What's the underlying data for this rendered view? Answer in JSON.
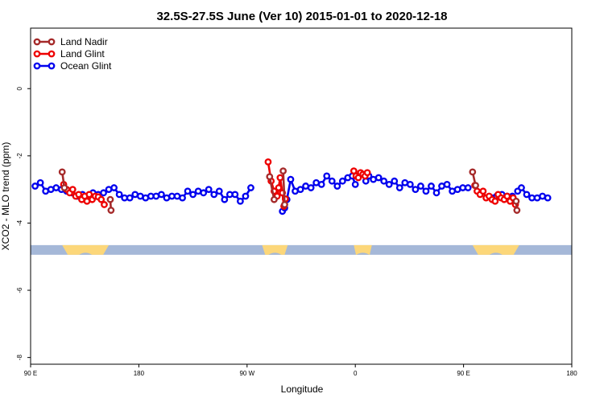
{
  "chart_data": {
    "type": "line",
    "title": "32.5S-27.5S June (Ver 10)   2015-01-01 to 2020-12-18",
    "xlabel": "Longitude",
    "ylabel": "XCO2 - MLO trend (ppm)",
    "xlim": [
      90,
      450
    ],
    "ylim": [
      -8.2,
      1.8
    ],
    "x_ticks": [
      {
        "value": 90,
        "label": "90 E"
      },
      {
        "value": 162,
        "label": "180"
      },
      {
        "value": 234,
        "label": "90 W"
      },
      {
        "value": 306,
        "label": "0"
      },
      {
        "value": 378,
        "label": "90 E"
      },
      {
        "value": 450,
        "label": "180"
      }
    ],
    "y_ticks": [
      {
        "value": 0,
        "label": "0"
      },
      {
        "value": -2,
        "label": "-2"
      },
      {
        "value": -4,
        "label": "-4"
      },
      {
        "value": -6,
        "label": "-6"
      },
      {
        "value": -8,
        "label": "-8"
      }
    ],
    "legend_position": "top-left",
    "land_ocean_strip": {
      "y": -4.8,
      "ocean_color": "#a5b8d8",
      "land_color": "#fcd77a",
      "land_segments": [
        [
          111,
          142
        ],
        [
          244,
          261
        ],
        [
          305,
          317
        ],
        [
          384,
          415
        ]
      ]
    },
    "series": [
      {
        "name": "Land Nadir",
        "color": "#a52a2a",
        "segments": [
          [
            [
              111,
              -2.48
            ],
            [
              112.5,
              -2.95
            ]
          ],
          [
            [
              143,
              -3.3
            ],
            [
              143.5,
              -3.62
            ]
          ],
          [
            [
              249,
              -2.62
            ],
            [
              252,
              -3.3
            ]
          ],
          [
            [
              258,
              -2.45
            ],
            [
              259,
              -3.45
            ]
          ],
          [
            [
              384,
              -2.48
            ],
            [
              386,
              -2.88
            ]
          ],
          [
            [
              413.5,
              -3.62
            ],
            [
              413,
              -3.35
            ]
          ]
        ]
      },
      {
        "name": "Land Glint",
        "color": "#ee0000",
        "segments": [
          [
            [
              112,
              -2.85
            ],
            [
              114,
              -3.0
            ],
            [
              116,
              -3.1
            ],
            [
              118,
              -3.0
            ],
            [
              120,
              -3.2
            ],
            [
              122,
              -3.15
            ],
            [
              124,
              -3.3
            ],
            [
              126,
              -3.2
            ],
            [
              127.5,
              -3.35
            ],
            [
              129,
              -3.15
            ],
            [
              131,
              -3.3
            ],
            [
              133,
              -3.2
            ],
            [
              135,
              -3.22
            ],
            [
              137,
              -3.3
            ],
            [
              139,
              -3.45
            ]
          ],
          [
            [
              248,
              -2.18
            ],
            [
              250,
              -2.75
            ],
            [
              252,
              -3.05
            ],
            [
              254,
              -3.2
            ],
            [
              255,
              -2.95
            ],
            [
              256,
              -2.65
            ],
            [
              257.5,
              -3.1
            ],
            [
              258.5,
              -3.5
            ],
            [
              259.5,
              -3.28
            ]
          ],
          [
            [
              305,
              -2.45
            ],
            [
              306.5,
              -2.6
            ],
            [
              308,
              -2.65
            ],
            [
              309.5,
              -2.5
            ],
            [
              311,
              -2.55
            ],
            [
              312.5,
              -2.6
            ],
            [
              314,
              -2.5
            ]
          ],
          [
            [
              385.5,
              -2.88
            ],
            [
              387,
              -3.05
            ],
            [
              389,
              -3.15
            ],
            [
              391,
              -3.05
            ],
            [
              393,
              -3.25
            ],
            [
              395,
              -3.2
            ],
            [
              397,
              -3.3
            ],
            [
              399,
              -3.35
            ],
            [
              401,
              -3.15
            ],
            [
              403,
              -3.25
            ],
            [
              405,
              -3.3
            ],
            [
              407,
              -3.2
            ],
            [
              409,
              -3.35
            ],
            [
              411,
              -3.25
            ],
            [
              412.5,
              -3.45
            ]
          ]
        ]
      },
      {
        "name": "Ocean Glint",
        "color": "#0000ee",
        "segments": [
          [
            [
              93,
              -2.9
            ],
            [
              96.5,
              -2.8
            ],
            [
              100,
              -3.05
            ],
            [
              103.5,
              -3.0
            ],
            [
              107,
              -2.95
            ],
            [
              110.5,
              -3.0
            ],
            [
              114,
              -3.05
            ],
            [
              117.5,
              -3.1
            ],
            [
              121,
              -3.2
            ],
            [
              124.5,
              -3.15
            ],
            [
              128,
              -3.2
            ],
            [
              131.5,
              -3.1
            ],
            [
              135,
              -3.15
            ],
            [
              138.5,
              -3.1
            ],
            [
              142,
              -3.0
            ],
            [
              145.5,
              -2.95
            ],
            [
              149,
              -3.15
            ],
            [
              152.5,
              -3.25
            ],
            [
              156,
              -3.25
            ],
            [
              159.5,
              -3.15
            ],
            [
              163,
              -3.2
            ],
            [
              166.5,
              -3.25
            ],
            [
              170,
              -3.2
            ],
            [
              173.5,
              -3.2
            ],
            [
              177,
              -3.15
            ],
            [
              180.5,
              -3.25
            ],
            [
              184,
              -3.2
            ],
            [
              187.5,
              -3.2
            ],
            [
              191,
              -3.25
            ],
            [
              194.5,
              -3.05
            ],
            [
              198,
              -3.15
            ],
            [
              201.5,
              -3.05
            ],
            [
              205,
              -3.1
            ],
            [
              208.5,
              -3.0
            ],
            [
              212,
              -3.15
            ],
            [
              215.5,
              -3.05
            ],
            [
              219,
              -3.3
            ],
            [
              222.5,
              -3.15
            ],
            [
              226,
              -3.15
            ],
            [
              229.5,
              -3.35
            ],
            [
              233,
              -3.2
            ],
            [
              236.5,
              -2.95
            ]
          ],
          [
            [
              257.5,
              -3.65
            ],
            [
              259,
              -3.55
            ],
            [
              260.5,
              -3.3
            ],
            [
              263,
              -2.7
            ],
            [
              266,
              -3.05
            ],
            [
              269.5,
              -3.0
            ],
            [
              273,
              -2.9
            ],
            [
              276.5,
              -2.95
            ],
            [
              280,
              -2.8
            ],
            [
              283.5,
              -2.85
            ],
            [
              287,
              -2.6
            ],
            [
              290.5,
              -2.75
            ],
            [
              294,
              -2.9
            ],
            [
              297.5,
              -2.75
            ],
            [
              301,
              -2.65
            ],
            [
              304,
              -2.6
            ],
            [
              306,
              -2.85
            ]
          ],
          [
            [
              313,
              -2.75
            ],
            [
              315,
              -2.6
            ],
            [
              318,
              -2.7
            ],
            [
              321.5,
              -2.65
            ],
            [
              325,
              -2.75
            ],
            [
              328.5,
              -2.85
            ],
            [
              332,
              -2.75
            ],
            [
              335.5,
              -2.95
            ],
            [
              339,
              -2.8
            ],
            [
              342.5,
              -2.85
            ],
            [
              346,
              -3.0
            ],
            [
              349.5,
              -2.9
            ],
            [
              353,
              -3.05
            ],
            [
              356.5,
              -2.9
            ],
            [
              360,
              -3.1
            ],
            [
              363.5,
              -2.9
            ],
            [
              367,
              -2.85
            ],
            [
              370.5,
              -3.05
            ],
            [
              374,
              -3.0
            ],
            [
              377.5,
              -2.95
            ],
            [
              381,
              -2.95
            ]
          ],
          [
            [
              397,
              -3.25
            ],
            [
              400,
              -3.2
            ],
            [
              403.5,
              -3.15
            ],
            [
              407,
              -3.2
            ],
            [
              410.5,
              -3.2
            ]
          ],
          [
            [
              414,
              -3.05
            ],
            [
              416.5,
              -2.95
            ],
            [
              420,
              -3.15
            ],
            [
              423.5,
              -3.25
            ],
            [
              427,
              -3.25
            ],
            [
              430.5,
              -3.2
            ],
            [
              434,
              -3.25
            ]
          ]
        ]
      }
    ]
  }
}
